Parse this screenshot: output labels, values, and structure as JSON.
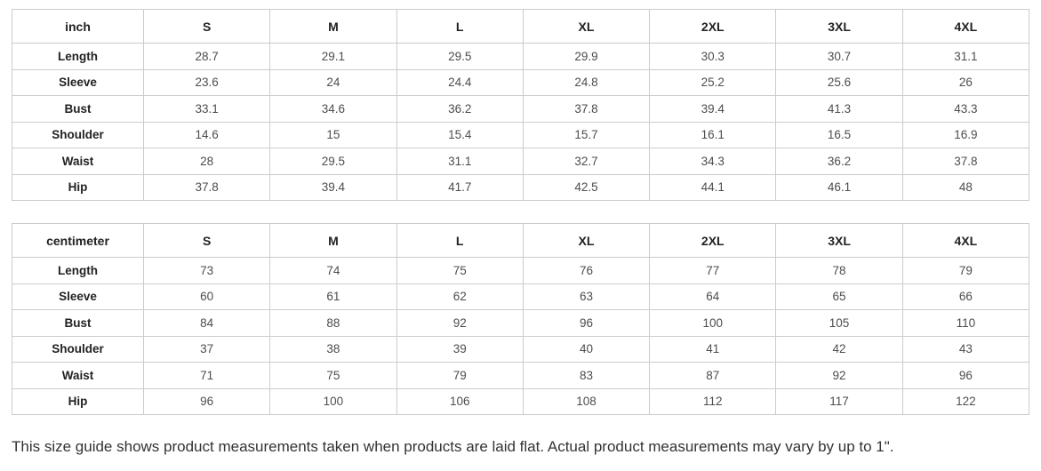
{
  "page": {
    "footer_note": "This size guide shows product measurements taken when products are laid flat. Actual product measurements may vary by up to 1\"."
  },
  "tables": [
    {
      "unit": "inch",
      "columns": [
        "S",
        "M",
        "L",
        "XL",
        "2XL",
        "3XL",
        "4XL"
      ],
      "rows": [
        {
          "label": "Length",
          "values": [
            "28.7",
            "29.1",
            "29.5",
            "29.9",
            "30.3",
            "30.7",
            "31.1"
          ]
        },
        {
          "label": "Sleeve",
          "values": [
            "23.6",
            "24",
            "24.4",
            "24.8",
            "25.2",
            "25.6",
            "26"
          ]
        },
        {
          "label": "Bust",
          "values": [
            "33.1",
            "34.6",
            "36.2",
            "37.8",
            "39.4",
            "41.3",
            "43.3"
          ]
        },
        {
          "label": "Shoulder",
          "values": [
            "14.6",
            "15",
            "15.4",
            "15.7",
            "16.1",
            "16.5",
            "16.9"
          ]
        },
        {
          "label": "Waist",
          "values": [
            "28",
            "29.5",
            "31.1",
            "32.7",
            "34.3",
            "36.2",
            "37.8"
          ]
        },
        {
          "label": "Hip",
          "values": [
            "37.8",
            "39.4",
            "41.7",
            "42.5",
            "44.1",
            "46.1",
            "48"
          ]
        }
      ]
    },
    {
      "unit": "centimeter",
      "columns": [
        "S",
        "M",
        "L",
        "XL",
        "2XL",
        "3XL",
        "4XL"
      ],
      "rows": [
        {
          "label": "Length",
          "values": [
            "73",
            "74",
            "75",
            "76",
            "77",
            "78",
            "79"
          ]
        },
        {
          "label": "Sleeve",
          "values": [
            "60",
            "61",
            "62",
            "63",
            "64",
            "65",
            "66"
          ]
        },
        {
          "label": "Bust",
          "values": [
            "84",
            "88",
            "92",
            "96",
            "100",
            "105",
            "110"
          ]
        },
        {
          "label": "Shoulder",
          "values": [
            "37",
            "38",
            "39",
            "40",
            "41",
            "42",
            "43"
          ]
        },
        {
          "label": "Waist",
          "values": [
            "71",
            "75",
            "79",
            "83",
            "87",
            "92",
            "96"
          ]
        },
        {
          "label": "Hip",
          "values": [
            "96",
            "100",
            "106",
            "108",
            "112",
            "117",
            "122"
          ]
        }
      ]
    }
  ],
  "colors": {
    "background": "#ffffff",
    "table_border": "#cccccc",
    "header_text": "#222222",
    "value_text": "#4d4d4d",
    "note_text": "#333333"
  }
}
